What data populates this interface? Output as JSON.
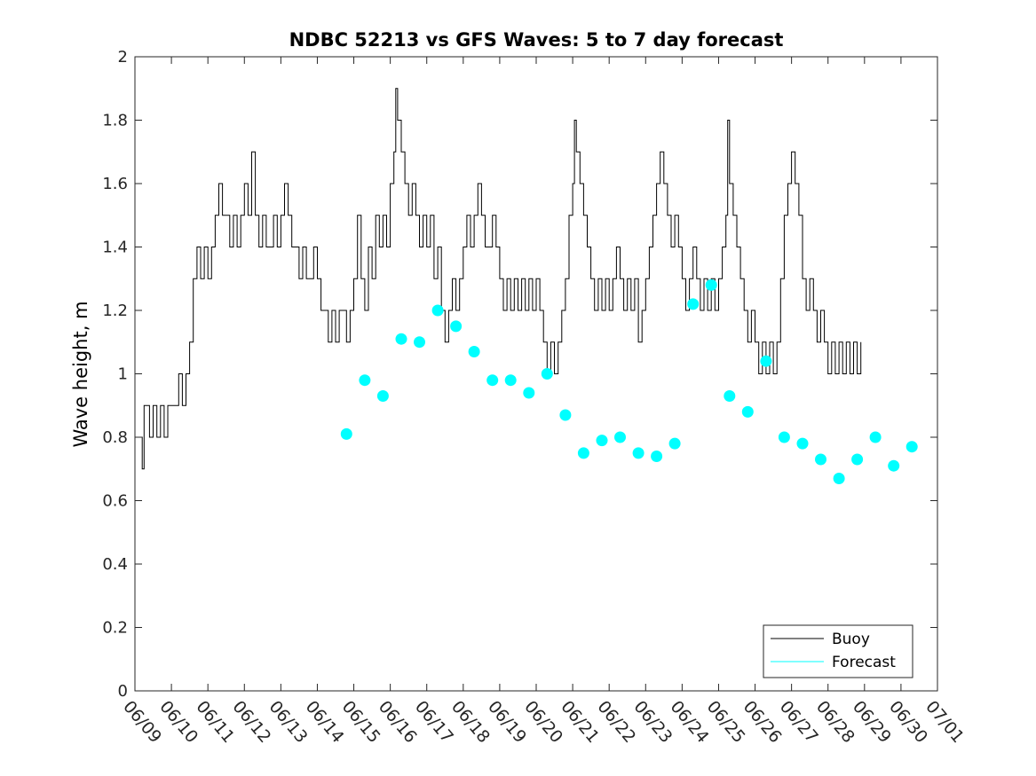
{
  "chart_data": {
    "type": "line",
    "title": "NDBC 52213 vs GFS Waves: 5 to 7 day forecast",
    "ylabel": "Wave height, m",
    "xlabel": "",
    "xlim": [
      0,
      22
    ],
    "ylim": [
      0,
      2
    ],
    "y_ticks": [
      0,
      0.2,
      0.4,
      0.6,
      0.8,
      1,
      1.2,
      1.4,
      1.6,
      1.8,
      2
    ],
    "y_tick_labels": [
      "0",
      "0.2",
      "0.4",
      "0.6",
      "0.8",
      "1",
      "1.2",
      "1.4",
      "1.6",
      "1.8",
      "2"
    ],
    "x_ticks": [
      0,
      1,
      2,
      3,
      4,
      5,
      6,
      7,
      8,
      9,
      10,
      11,
      12,
      13,
      14,
      15,
      16,
      17,
      18,
      19,
      20,
      21,
      22
    ],
    "x_tick_labels": [
      "06/09",
      "06/10",
      "06/11",
      "06/12",
      "06/13",
      "06/14",
      "06/15",
      "06/16",
      "06/17",
      "06/18",
      "06/19",
      "06/20",
      "06/21",
      "06/22",
      "06/23",
      "06/24",
      "06/25",
      "06/26",
      "06/27",
      "06/28",
      "06/29",
      "06/30",
      "07/01"
    ],
    "grid": false,
    "legend_position": "bottom-right",
    "series": [
      {
        "name": "Buoy",
        "color": "#000000",
        "points": [
          [
            0.0,
            0.8
          ],
          [
            0.1,
            0.8
          ],
          [
            0.2,
            0.7
          ],
          [
            0.25,
            0.9
          ],
          [
            0.4,
            0.8
          ],
          [
            0.5,
            0.9
          ],
          [
            0.6,
            0.8
          ],
          [
            0.7,
            0.9
          ],
          [
            0.8,
            0.8
          ],
          [
            0.9,
            0.9
          ],
          [
            1.0,
            0.9
          ],
          [
            1.2,
            1.0
          ],
          [
            1.3,
            0.9
          ],
          [
            1.4,
            1.0
          ],
          [
            1.5,
            1.1
          ],
          [
            1.6,
            1.3
          ],
          [
            1.7,
            1.4
          ],
          [
            1.8,
            1.3
          ],
          [
            1.9,
            1.4
          ],
          [
            2.0,
            1.3
          ],
          [
            2.1,
            1.4
          ],
          [
            2.2,
            1.5
          ],
          [
            2.3,
            1.6
          ],
          [
            2.4,
            1.5
          ],
          [
            2.6,
            1.4
          ],
          [
            2.7,
            1.5
          ],
          [
            2.8,
            1.4
          ],
          [
            2.9,
            1.5
          ],
          [
            3.0,
            1.6
          ],
          [
            3.1,
            1.5
          ],
          [
            3.2,
            1.7
          ],
          [
            3.3,
            1.5
          ],
          [
            3.4,
            1.4
          ],
          [
            3.5,
            1.5
          ],
          [
            3.6,
            1.4
          ],
          [
            3.8,
            1.5
          ],
          [
            3.9,
            1.4
          ],
          [
            4.0,
            1.5
          ],
          [
            4.1,
            1.6
          ],
          [
            4.2,
            1.5
          ],
          [
            4.3,
            1.4
          ],
          [
            4.5,
            1.3
          ],
          [
            4.6,
            1.4
          ],
          [
            4.7,
            1.3
          ],
          [
            4.9,
            1.4
          ],
          [
            5.0,
            1.3
          ],
          [
            5.1,
            1.2
          ],
          [
            5.3,
            1.1
          ],
          [
            5.4,
            1.2
          ],
          [
            5.5,
            1.1
          ],
          [
            5.6,
            1.2
          ],
          [
            5.8,
            1.1
          ],
          [
            5.9,
            1.2
          ],
          [
            6.0,
            1.3
          ],
          [
            6.1,
            1.5
          ],
          [
            6.2,
            1.3
          ],
          [
            6.3,
            1.2
          ],
          [
            6.4,
            1.4
          ],
          [
            6.5,
            1.3
          ],
          [
            6.6,
            1.5
          ],
          [
            6.7,
            1.4
          ],
          [
            6.8,
            1.5
          ],
          [
            6.9,
            1.4
          ],
          [
            7.0,
            1.6
          ],
          [
            7.1,
            1.7
          ],
          [
            7.15,
            1.9
          ],
          [
            7.2,
            1.8
          ],
          [
            7.3,
            1.7
          ],
          [
            7.4,
            1.6
          ],
          [
            7.5,
            1.5
          ],
          [
            7.6,
            1.6
          ],
          [
            7.7,
            1.5
          ],
          [
            7.8,
            1.4
          ],
          [
            7.9,
            1.5
          ],
          [
            8.0,
            1.4
          ],
          [
            8.1,
            1.5
          ],
          [
            8.2,
            1.3
          ],
          [
            8.3,
            1.4
          ],
          [
            8.4,
            1.2
          ],
          [
            8.5,
            1.1
          ],
          [
            8.6,
            1.2
          ],
          [
            8.7,
            1.3
          ],
          [
            8.8,
            1.2
          ],
          [
            8.9,
            1.3
          ],
          [
            9.0,
            1.4
          ],
          [
            9.1,
            1.5
          ],
          [
            9.2,
            1.4
          ],
          [
            9.3,
            1.5
          ],
          [
            9.4,
            1.6
          ],
          [
            9.5,
            1.5
          ],
          [
            9.6,
            1.4
          ],
          [
            9.7,
            1.4
          ],
          [
            9.8,
            1.5
          ],
          [
            9.9,
            1.4
          ],
          [
            10.0,
            1.3
          ],
          [
            10.1,
            1.2
          ],
          [
            10.2,
            1.3
          ],
          [
            10.3,
            1.2
          ],
          [
            10.4,
            1.3
          ],
          [
            10.5,
            1.2
          ],
          [
            10.6,
            1.3
          ],
          [
            10.7,
            1.2
          ],
          [
            10.8,
            1.3
          ],
          [
            10.9,
            1.2
          ],
          [
            11.0,
            1.3
          ],
          [
            11.1,
            1.2
          ],
          [
            11.2,
            1.1
          ],
          [
            11.3,
            1.0
          ],
          [
            11.4,
            1.1
          ],
          [
            11.5,
            1.0
          ],
          [
            11.6,
            1.1
          ],
          [
            11.7,
            1.2
          ],
          [
            11.8,
            1.3
          ],
          [
            11.9,
            1.5
          ],
          [
            12.0,
            1.6
          ],
          [
            12.05,
            1.8
          ],
          [
            12.1,
            1.7
          ],
          [
            12.2,
            1.6
          ],
          [
            12.3,
            1.5
          ],
          [
            12.4,
            1.4
          ],
          [
            12.5,
            1.3
          ],
          [
            12.6,
            1.2
          ],
          [
            12.7,
            1.3
          ],
          [
            12.8,
            1.2
          ],
          [
            12.9,
            1.3
          ],
          [
            13.0,
            1.2
          ],
          [
            13.1,
            1.3
          ],
          [
            13.2,
            1.4
          ],
          [
            13.3,
            1.3
          ],
          [
            13.4,
            1.2
          ],
          [
            13.5,
            1.3
          ],
          [
            13.6,
            1.2
          ],
          [
            13.7,
            1.3
          ],
          [
            13.8,
            1.1
          ],
          [
            13.9,
            1.2
          ],
          [
            14.0,
            1.3
          ],
          [
            14.1,
            1.4
          ],
          [
            14.2,
            1.5
          ],
          [
            14.3,
            1.6
          ],
          [
            14.4,
            1.7
          ],
          [
            14.5,
            1.6
          ],
          [
            14.6,
            1.5
          ],
          [
            14.7,
            1.4
          ],
          [
            14.8,
            1.5
          ],
          [
            14.9,
            1.4
          ],
          [
            15.0,
            1.3
          ],
          [
            15.1,
            1.2
          ],
          [
            15.2,
            1.3
          ],
          [
            15.3,
            1.4
          ],
          [
            15.4,
            1.3
          ],
          [
            15.5,
            1.2
          ],
          [
            15.6,
            1.3
          ],
          [
            15.7,
            1.2
          ],
          [
            15.8,
            1.3
          ],
          [
            15.9,
            1.2
          ],
          [
            16.0,
            1.3
          ],
          [
            16.1,
            1.4
          ],
          [
            16.2,
            1.5
          ],
          [
            16.25,
            1.8
          ],
          [
            16.3,
            1.6
          ],
          [
            16.4,
            1.5
          ],
          [
            16.5,
            1.4
          ],
          [
            16.6,
            1.3
          ],
          [
            16.7,
            1.2
          ],
          [
            16.8,
            1.1
          ],
          [
            16.9,
            1.2
          ],
          [
            17.0,
            1.1
          ],
          [
            17.1,
            1.0
          ],
          [
            17.2,
            1.1
          ],
          [
            17.3,
            1.0
          ],
          [
            17.4,
            1.1
          ],
          [
            17.5,
            1.0
          ],
          [
            17.6,
            1.1
          ],
          [
            17.7,
            1.3
          ],
          [
            17.8,
            1.5
          ],
          [
            17.9,
            1.6
          ],
          [
            18.0,
            1.7
          ],
          [
            18.1,
            1.6
          ],
          [
            18.2,
            1.5
          ],
          [
            18.3,
            1.3
          ],
          [
            18.4,
            1.2
          ],
          [
            18.5,
            1.3
          ],
          [
            18.6,
            1.2
          ],
          [
            18.7,
            1.1
          ],
          [
            18.8,
            1.2
          ],
          [
            18.9,
            1.1
          ],
          [
            19.0,
            1.0
          ],
          [
            19.1,
            1.1
          ],
          [
            19.2,
            1.0
          ],
          [
            19.3,
            1.1
          ],
          [
            19.4,
            1.0
          ],
          [
            19.5,
            1.1
          ],
          [
            19.6,
            1.0
          ],
          [
            19.7,
            1.1
          ],
          [
            19.8,
            1.0
          ],
          [
            19.9,
            1.1
          ]
        ]
      },
      {
        "name": "Forecast",
        "color": "#00ffff",
        "points": [
          [
            5.8,
            0.81
          ],
          [
            6.3,
            0.98
          ],
          [
            6.8,
            0.93
          ],
          [
            7.3,
            1.11
          ],
          [
            7.8,
            1.1
          ],
          [
            8.3,
            1.2
          ],
          [
            8.8,
            1.15
          ],
          [
            9.3,
            1.07
          ],
          [
            9.8,
            0.98
          ],
          [
            10.3,
            0.98
          ],
          [
            10.8,
            0.94
          ],
          [
            11.3,
            1.0
          ],
          [
            11.8,
            0.87
          ],
          [
            12.3,
            0.75
          ],
          [
            12.8,
            0.79
          ],
          [
            13.3,
            0.8
          ],
          [
            13.8,
            0.75
          ],
          [
            14.3,
            0.74
          ],
          [
            14.8,
            0.78
          ],
          [
            15.3,
            1.22
          ],
          [
            15.8,
            1.28
          ],
          [
            16.3,
            0.93
          ],
          [
            16.8,
            0.88
          ],
          [
            17.3,
            1.04
          ],
          [
            17.8,
            0.8
          ],
          [
            18.3,
            0.78
          ],
          [
            18.8,
            0.73
          ],
          [
            19.3,
            0.67
          ],
          [
            19.8,
            0.73
          ],
          [
            20.3,
            0.8
          ],
          [
            20.8,
            0.71
          ],
          [
            21.3,
            0.77
          ]
        ]
      }
    ]
  }
}
